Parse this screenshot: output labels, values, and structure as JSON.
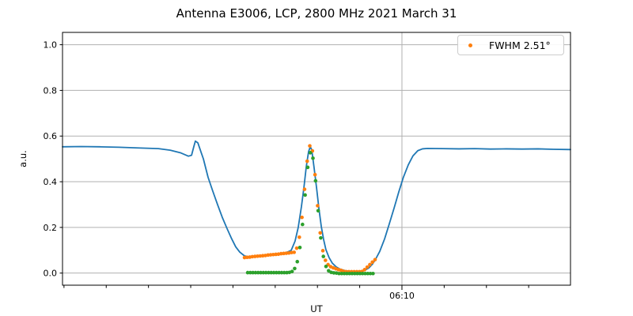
{
  "chart_data": {
    "type": "line",
    "title": "Antenna E3006, LCP, 2800 MHz 2021 March 31",
    "xlabel": "UT",
    "ylabel": "a.u.",
    "x_axis": {
      "unit": "minutes_after_midnight_UT",
      "min": 353.93,
      "max": 377.98,
      "start_time": "05:54",
      "end_time": "06:18",
      "major_ticks": [
        {
          "value": 370,
          "label": "06:10"
        }
      ],
      "minor_ticks": [
        354,
        356,
        358,
        360,
        362,
        364,
        366,
        368,
        372,
        374,
        376
      ],
      "grid": "major_only"
    },
    "y_axis": {
      "min": -0.053,
      "max": 1.054,
      "ticks": [
        0.0,
        0.2,
        0.4,
        0.6,
        0.8,
        1.0
      ],
      "grid": true
    },
    "legend": {
      "position": "upper-right",
      "entries": [
        {
          "label": "FWHM 2.51°",
          "marker": "dot",
          "color": "#ff7f0e"
        }
      ]
    },
    "colors": {
      "grid": "#b0b0b0",
      "spine": "#000000",
      "tick_label": "#000000"
    },
    "series": [
      {
        "name": "signal-line",
        "type": "line",
        "color": "#1f77b4",
        "line_width": 1.8,
        "points": [
          [
            353.93,
            0.553
          ],
          [
            354.8,
            0.554
          ],
          [
            355.7,
            0.553
          ],
          [
            356.6,
            0.551
          ],
          [
            357.5,
            0.548
          ],
          [
            358.47,
            0.545
          ],
          [
            359.03,
            0.538
          ],
          [
            359.51,
            0.527
          ],
          [
            359.89,
            0.512
          ],
          [
            360.04,
            0.516
          ],
          [
            360.15,
            0.555
          ],
          [
            360.22,
            0.578
          ],
          [
            360.34,
            0.57
          ],
          [
            360.45,
            0.54
          ],
          [
            360.6,
            0.5
          ],
          [
            360.82,
            0.42
          ],
          [
            361.04,
            0.36
          ],
          [
            361.27,
            0.3
          ],
          [
            361.49,
            0.245
          ],
          [
            361.72,
            0.195
          ],
          [
            361.94,
            0.15
          ],
          [
            362.13,
            0.115
          ],
          [
            362.32,
            0.092
          ],
          [
            362.55,
            0.075
          ],
          [
            362.77,
            0.071
          ],
          [
            363.33,
            0.074
          ],
          [
            363.9,
            0.079
          ],
          [
            364.46,
            0.087
          ],
          [
            364.76,
            0.1
          ],
          [
            364.94,
            0.14
          ],
          [
            365.09,
            0.2
          ],
          [
            365.24,
            0.29
          ],
          [
            365.36,
            0.375
          ],
          [
            365.47,
            0.465
          ],
          [
            365.58,
            0.532
          ],
          [
            365.66,
            0.553
          ],
          [
            365.73,
            0.54
          ],
          [
            365.84,
            0.462
          ],
          [
            365.96,
            0.372
          ],
          [
            366.07,
            0.282
          ],
          [
            366.18,
            0.205
          ],
          [
            366.29,
            0.148
          ],
          [
            366.4,
            0.103
          ],
          [
            366.55,
            0.068
          ],
          [
            366.7,
            0.044
          ],
          [
            366.89,
            0.027
          ],
          [
            367.08,
            0.017
          ],
          [
            367.3,
            0.011
          ],
          [
            367.6,
            0.007
          ],
          [
            367.9,
            0.007
          ],
          [
            368.2,
            0.011
          ],
          [
            368.43,
            0.022
          ],
          [
            368.61,
            0.04
          ],
          [
            368.76,
            0.062
          ],
          [
            368.95,
            0.095
          ],
          [
            369.18,
            0.15
          ],
          [
            369.4,
            0.215
          ],
          [
            369.63,
            0.285
          ],
          [
            369.85,
            0.355
          ],
          [
            370.07,
            0.42
          ],
          [
            370.3,
            0.474
          ],
          [
            370.52,
            0.513
          ],
          [
            370.75,
            0.536
          ],
          [
            370.97,
            0.544
          ],
          [
            371.2,
            0.546
          ],
          [
            371.95,
            0.545
          ],
          [
            372.7,
            0.544
          ],
          [
            373.45,
            0.545
          ],
          [
            374.19,
            0.543
          ],
          [
            374.94,
            0.544
          ],
          [
            375.69,
            0.543
          ],
          [
            376.44,
            0.544
          ],
          [
            377.19,
            0.542
          ],
          [
            377.98,
            0.541
          ]
        ]
      },
      {
        "name": "scan-dots",
        "type": "dots",
        "color": "#ff7f0e",
        "dot_radius": 2.3,
        "t_start": 362.547,
        "t_step": 0.1236,
        "values": [
          0.068,
          0.069,
          0.07,
          0.072,
          0.073,
          0.074,
          0.075,
          0.076,
          0.077,
          0.079,
          0.08,
          0.081,
          0.082,
          0.083,
          0.085,
          0.086,
          0.087,
          0.088,
          0.09,
          0.091,
          0.109,
          0.157,
          0.244,
          0.367,
          0.49,
          0.557,
          0.535,
          0.431,
          0.295,
          0.176,
          0.098,
          0.056,
          0.037,
          0.028,
          0.023,
          0.019,
          0.015,
          0.012,
          0.008,
          0.006,
          0.006,
          0.006,
          0.006,
          0.006,
          0.006,
          0.007,
          0.015,
          0.026,
          0.037,
          0.048,
          0.059
        ]
      },
      {
        "name": "background-subtracted-dots",
        "type": "dots",
        "color": "#2ca02c",
        "dot_radius": 2.3,
        "t_start": 362.697,
        "t_step": 0.1236,
        "values": [
          0.002,
          0.002,
          0.002,
          0.002,
          0.002,
          0.002,
          0.002,
          0.002,
          0.002,
          0.002,
          0.002,
          0.002,
          0.002,
          0.002,
          0.002,
          0.002,
          0.003,
          0.007,
          0.02,
          0.05,
          0.112,
          0.213,
          0.342,
          0.463,
          0.527,
          0.503,
          0.404,
          0.273,
          0.154,
          0.073,
          0.029,
          0.01,
          0.003,
          0.001,
          0.0,
          -0.002,
          -0.002,
          -0.002,
          -0.002,
          -0.002,
          -0.002,
          -0.002,
          -0.002,
          -0.002,
          -0.002,
          -0.002,
          -0.002,
          -0.002,
          -0.002
        ]
      }
    ]
  }
}
